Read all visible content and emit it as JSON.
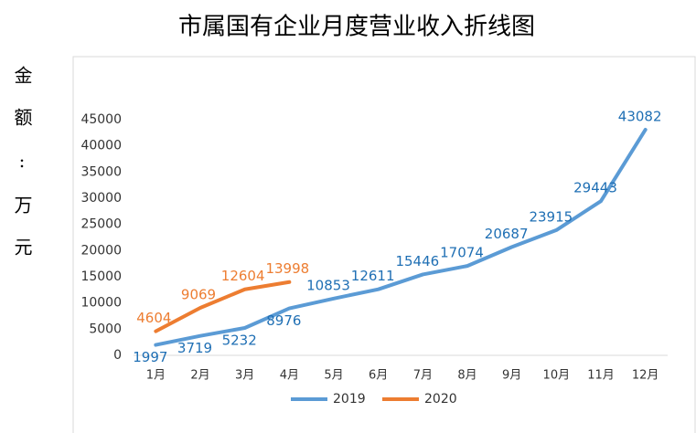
{
  "chart_data": {
    "type": "line",
    "title": "市属国有企业月度营业收入折线图",
    "y_label": "金额:万元",
    "categories": [
      "1月",
      "2月",
      "3月",
      "4月",
      "5月",
      "6月",
      "7月",
      "8月",
      "9月",
      "10月",
      "11月",
      "12月"
    ],
    "series": [
      {
        "name": "2019",
        "color": "#5b9bd5",
        "label_color": "#1f6fb4",
        "values": [
          1997,
          3719,
          5232,
          8976,
          10853,
          12611,
          15446,
          17074,
          20687,
          23915,
          29443,
          43082
        ]
      },
      {
        "name": "2020",
        "color": "#ed7d31",
        "label_color": "#ed7d31",
        "values": [
          4604,
          9069,
          12604,
          13998,
          null,
          null,
          null,
          null,
          null,
          null,
          null,
          null
        ]
      }
    ],
    "ylim": [
      0,
      45000
    ],
    "yticks": [
      0,
      5000,
      10000,
      15000,
      20000,
      25000,
      30000,
      35000,
      40000,
      45000
    ],
    "grid": false,
    "legend": "bottom"
  }
}
